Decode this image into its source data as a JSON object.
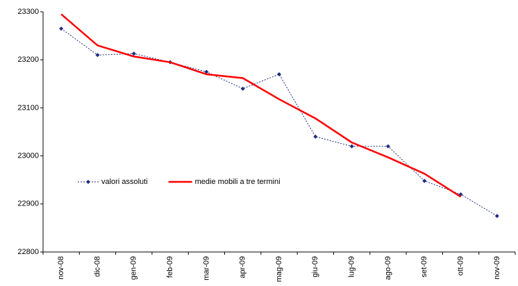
{
  "chart_data": {
    "type": "line",
    "categories": [
      "nov-08",
      "dic-08",
      "gen-09",
      "feb-09",
      "mar-09",
      "apr-09",
      "mag-09",
      "giu-09",
      "lug-09",
      "ago-09",
      "set-09",
      "ott-09",
      "nov-09"
    ],
    "series": [
      {
        "name": "valori assoluti",
        "color": "#1f2a80",
        "style": "dotted-markers",
        "values": [
          23265,
          23210,
          23213,
          23195,
          23175,
          23140,
          23170,
          23040,
          23020,
          23020,
          22948,
          22920,
          22875
        ]
      },
      {
        "name": "medie mobili a tre termini",
        "color": "#ff0000",
        "style": "solid",
        "values": [
          23295,
          23230,
          23207,
          23195,
          23170,
          23162,
          23118,
          23078,
          23028,
          22997,
          22963,
          22915,
          null
        ]
      }
    ],
    "ylim": [
      22800,
      23300
    ],
    "yticks": [
      22800,
      22900,
      23000,
      23100,
      23200,
      23300
    ],
    "grid": false,
    "legend": "inside-left"
  }
}
